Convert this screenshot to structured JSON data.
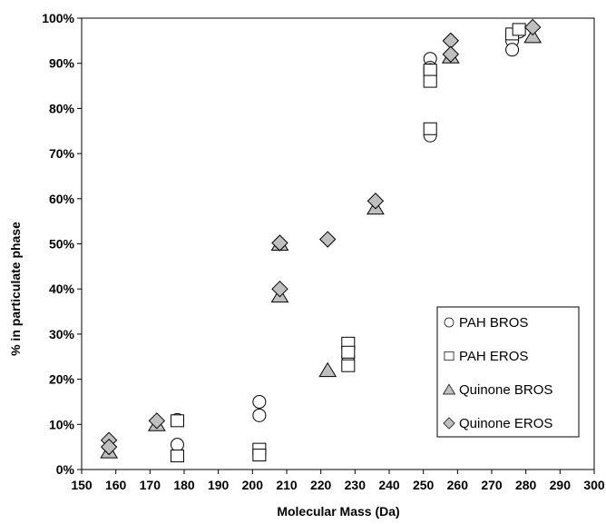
{
  "chart_data": {
    "type": "scatter",
    "title": "",
    "xlabel": "Molecular Mass (Da)",
    "ylabel": "% in particulate phase",
    "xlim": [
      150,
      300
    ],
    "ylim": [
      0,
      100
    ],
    "x_ticks": [
      150,
      160,
      170,
      180,
      190,
      200,
      210,
      220,
      230,
      240,
      250,
      260,
      270,
      280,
      290,
      300
    ],
    "y_ticks": [
      0,
      10,
      20,
      30,
      40,
      50,
      60,
      70,
      80,
      90,
      100
    ],
    "y_tick_labels": [
      "0%",
      "10%",
      "20%",
      "30%",
      "40%",
      "50%",
      "60%",
      "70%",
      "80%",
      "90%",
      "100%"
    ],
    "grid": false,
    "legend_position": "bottom-right",
    "series": [
      {
        "name": "PAH BROS",
        "marker": "circle",
        "fill": "#ffffff",
        "points": [
          [
            178,
            11
          ],
          [
            178,
            5.5
          ],
          [
            202,
            15
          ],
          [
            202,
            12
          ],
          [
            228,
            27
          ],
          [
            228,
            25
          ],
          [
            252,
            91
          ],
          [
            252,
            89
          ],
          [
            252,
            88.5
          ],
          [
            252,
            88
          ],
          [
            252,
            74
          ],
          [
            276,
            95
          ],
          [
            276,
            93
          ],
          [
            278,
            97
          ]
        ]
      },
      {
        "name": "PAH EROS",
        "marker": "square",
        "fill": "#ffffff",
        "points": [
          [
            178,
            10.8
          ],
          [
            178,
            3
          ],
          [
            202,
            4.5
          ],
          [
            202,
            3.2
          ],
          [
            228,
            28
          ],
          [
            228,
            26
          ],
          [
            228,
            23
          ],
          [
            252,
            88.5
          ],
          [
            252,
            86
          ],
          [
            252,
            75.5
          ],
          [
            276,
            96.5
          ],
          [
            278,
            97.5
          ]
        ]
      },
      {
        "name": "Quinone BROS",
        "marker": "triangle",
        "fill": "#bfbfbf",
        "points": [
          [
            158,
            4
          ],
          [
            172,
            10
          ],
          [
            208,
            50
          ],
          [
            208,
            38.5
          ],
          [
            222,
            22
          ],
          [
            236,
            58
          ],
          [
            258,
            91.5
          ],
          [
            282,
            96
          ]
        ]
      },
      {
        "name": "Quinone EROS",
        "marker": "diamond",
        "fill": "#bfbfbf",
        "points": [
          [
            158,
            6.5
          ],
          [
            158,
            5
          ],
          [
            172,
            10.8
          ],
          [
            208,
            50.2
          ],
          [
            208,
            40
          ],
          [
            222,
            51
          ],
          [
            236,
            59.5
          ],
          [
            258,
            95
          ],
          [
            258,
            92
          ],
          [
            282,
            98
          ]
        ]
      }
    ]
  }
}
